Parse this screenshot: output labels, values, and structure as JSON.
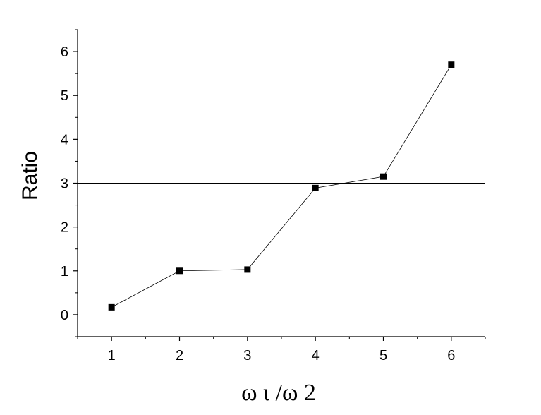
{
  "chart_data": {
    "type": "line",
    "title": "",
    "xlabel": "ω ι /ω 2",
    "ylabel": "Ratio",
    "xlim": [
      0.5,
      6.5
    ],
    "ylim": [
      -0.5,
      6.5
    ],
    "x_ticks": [
      1,
      2,
      3,
      4,
      5,
      6
    ],
    "y_ticks": [
      0,
      1,
      2,
      3,
      4,
      5,
      6
    ],
    "grid": false,
    "legend": "none",
    "series": [
      {
        "x": [
          1,
          2,
          3,
          4,
          5,
          6
        ],
        "values": [
          0.17,
          1.0,
          1.03,
          2.89,
          3.15,
          5.7
        ],
        "marker": "square",
        "color": "#000000"
      }
    ],
    "reference_lines": [
      {
        "orientation": "horizontal",
        "y": 3,
        "color": "#000000"
      }
    ]
  }
}
